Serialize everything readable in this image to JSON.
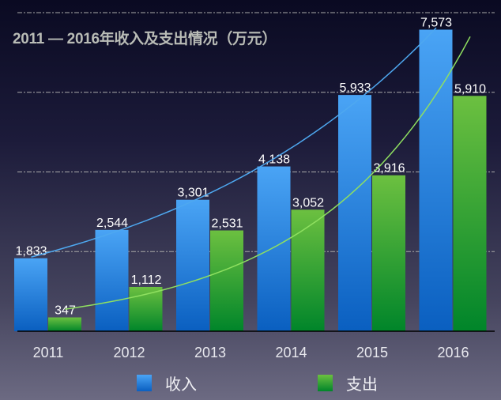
{
  "chart_data": {
    "type": "bar",
    "title": "2011 — 2016年收入及支出情况（万元）",
    "categories": [
      "2011",
      "2012",
      "2013",
      "2014",
      "2015",
      "2016"
    ],
    "series": [
      {
        "name": "收入",
        "values": [
          1833,
          2544,
          3301,
          4138,
          5933,
          7573
        ],
        "labels": [
          "1,833",
          "2,544",
          "3,301",
          "4,138",
          "5,933",
          "7,573"
        ],
        "color_top": "#4aa4f5",
        "color_bottom": "#0a5fc0",
        "trend_color": "#4ea8f0"
      },
      {
        "name": "支出",
        "values": [
          347,
          1112,
          2531,
          3052,
          3916,
          5910
        ],
        "labels": [
          "347",
          "1,112",
          "2,531",
          "3,052",
          "3,916",
          "5,910"
        ],
        "color_top": "#6cc040",
        "color_bottom": "#00852a",
        "trend_color": "#8fe060"
      }
    ],
    "ylim": [
      0,
      8000
    ],
    "gridlines": [
      2000,
      4000,
      6000,
      8000
    ],
    "grid": true,
    "trendline": "exponential",
    "legend_position": "bottom"
  }
}
